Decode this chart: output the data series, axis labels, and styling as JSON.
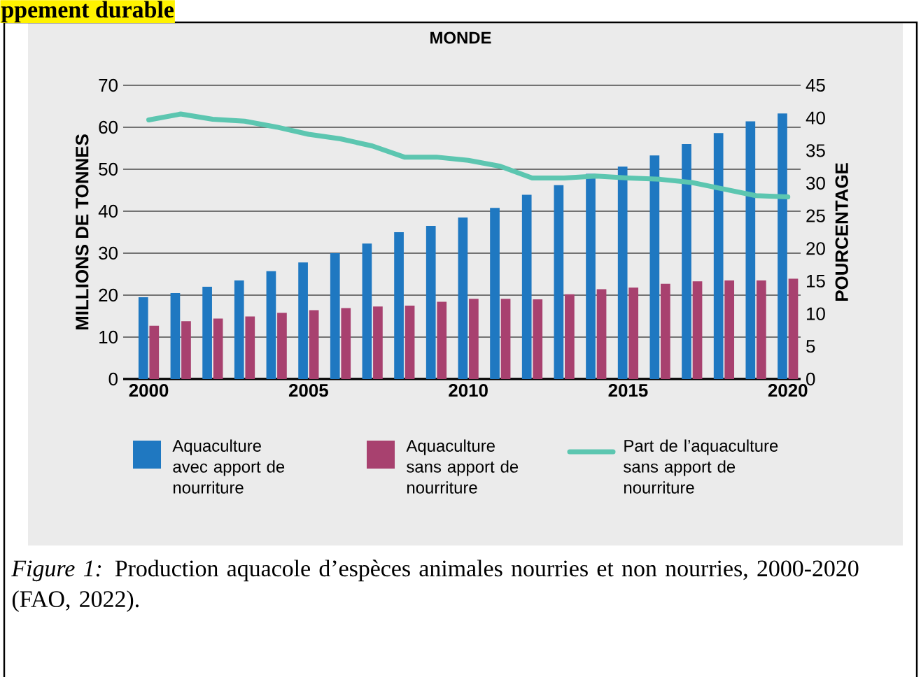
{
  "chart_data": {
    "type": "bar",
    "title": "MONDE",
    "ylabel": "MILLIONS DE TONNES",
    "y2label": "POURCENTAGE",
    "x": [
      2000,
      2001,
      2002,
      2003,
      2004,
      2005,
      2006,
      2007,
      2008,
      2009,
      2010,
      2011,
      2012,
      2013,
      2014,
      2015,
      2016,
      2017,
      2018,
      2019,
      2020
    ],
    "series": [
      {
        "name": "Aquaculture avec apport de nourriture",
        "color": "#1f78c1",
        "values": [
          19.5,
          20.5,
          22,
          23.5,
          25.7,
          27.8,
          30,
          32.3,
          35,
          36.5,
          38.5,
          40.8,
          43.9,
          46.2,
          48.9,
          50.6,
          53.3,
          56,
          58.6,
          61.4,
          63.3
        ]
      },
      {
        "name": "Aquaculture sans apport de nourriture",
        "color": "#a8416f",
        "values": [
          12.7,
          13.8,
          14.4,
          14.9,
          15.8,
          16.4,
          16.9,
          17.3,
          17.5,
          18.4,
          19.1,
          19.1,
          19,
          20.2,
          21.4,
          21.8,
          22.7,
          23.3,
          23.5,
          23.5,
          23.9
        ]
      },
      {
        "name": "Part de l’aquaculture sans apport de nourriture",
        "type": "line",
        "axis": "y2",
        "color": "#5cc6b0",
        "values": [
          39.7,
          40.6,
          39.8,
          39.5,
          38.6,
          37.5,
          36.8,
          35.7,
          34,
          34,
          33.5,
          32.6,
          30.8,
          30.8,
          31.1,
          30.8,
          30.6,
          30.1,
          29.1,
          28.1,
          27.9
        ]
      }
    ],
    "xlim": [
      1999.2,
      2020.4
    ],
    "xticks": [
      2000,
      2005,
      2010,
      2015,
      2020
    ],
    "ylim": [
      0,
      70
    ],
    "yticks": [
      0,
      10,
      20,
      30,
      40,
      50,
      60,
      70
    ],
    "y2lim": [
      0,
      45
    ],
    "y2ticks": [
      0,
      5,
      10,
      15,
      20,
      25,
      30,
      35,
      40,
      45
    ],
    "grid": "y",
    "legend": "bottom",
    "line_style": "solid",
    "marker": "none",
    "annotations": [
      "ppement durable",
      "*Figure 1:* Production aquacole d’espèces animales nourries et non nourries, 2000-2020 (FAO, 2022)."
    ]
  }
}
